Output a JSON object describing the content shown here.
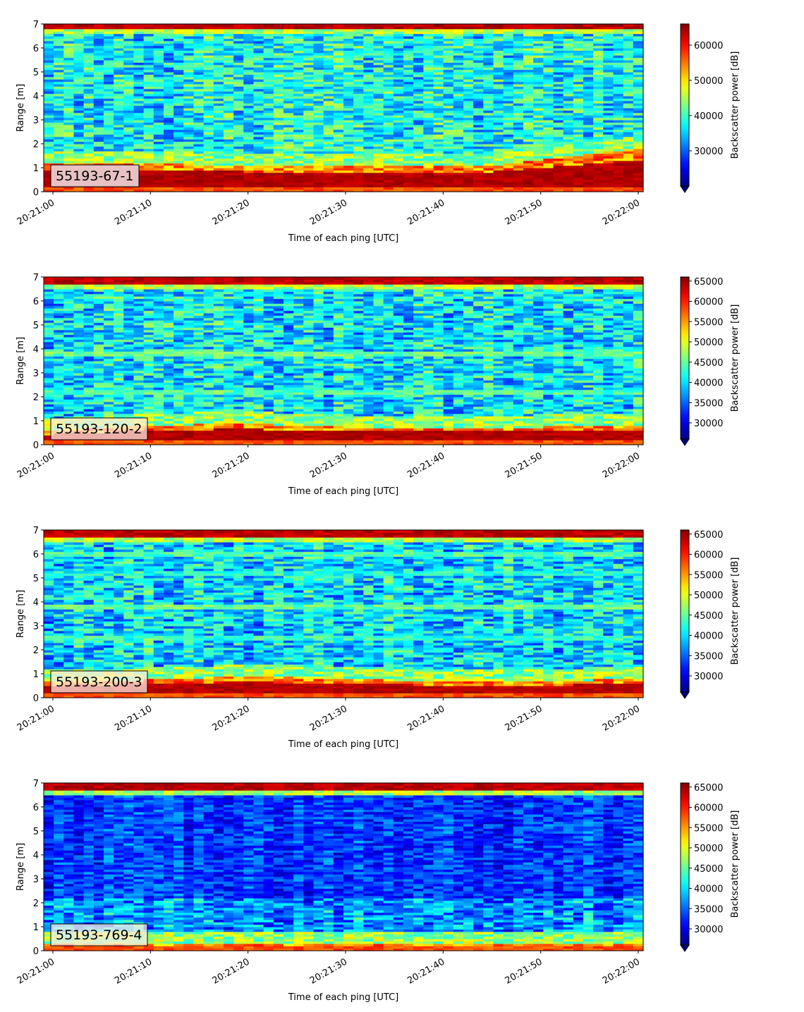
{
  "chart_data": [
    {
      "type": "heatmap",
      "label": "55193-67-1",
      "ylabel": "Range [m]",
      "xlabel": "Time of each ping [UTC]",
      "ylim": [
        0,
        7
      ],
      "yticks": [
        "0",
        "1",
        "2",
        "3",
        "4",
        "5",
        "6",
        "7"
      ],
      "xticks": [
        "20:21:00",
        "20:21:10",
        "20:21:20",
        "20:21:30",
        "20:21:40",
        "20:21:50",
        "20:22:00"
      ],
      "colorbar": {
        "label": "Backscatter power [dB]",
        "min": 20000,
        "max": 66000,
        "ticks": [
          "30000",
          "40000",
          "50000",
          "60000"
        ],
        "tick_values": [
          30000,
          40000,
          50000,
          60000
        ],
        "colormap": "jet"
      },
      "features": {
        "bottom_band": [
          1.25,
          1.15,
          1.1,
          1.1,
          1.8
        ],
        "surface": 6.8,
        "layers": [],
        "background": 0.22,
        "dark": false
      }
    },
    {
      "type": "heatmap",
      "label": "55193-120-2",
      "ylabel": "Range [m]",
      "xlabel": "Time of each ping [UTC]",
      "ylim": [
        0,
        7
      ],
      "yticks": [
        "0",
        "1",
        "2",
        "3",
        "4",
        "5",
        "6",
        "7"
      ],
      "xticks": [
        "20:21:00",
        "20:21:10",
        "20:21:20",
        "20:21:30",
        "20:21:40",
        "20:21:50",
        "20:22:00"
      ],
      "colorbar": {
        "label": "Backscatter power [dB]",
        "min": 26000,
        "max": 66000,
        "ticks": [
          "30000",
          "35000",
          "40000",
          "45000",
          "50000",
          "55000",
          "60000",
          "65000"
        ],
        "tick_values": [
          30000,
          35000,
          40000,
          45000,
          50000,
          55000,
          60000,
          65000
        ],
        "colormap": "jet"
      },
      "features": {
        "bottom_band": [
          0.6,
          0.8,
          0.9,
          0.75,
          0.75,
          0.75,
          0.8
        ],
        "surface": 6.7,
        "layers": [
          3.8,
          2.2
        ],
        "background": 0.2,
        "dark": false
      }
    },
    {
      "type": "heatmap",
      "label": "55193-200-3",
      "ylabel": "Range [m]",
      "xlabel": "Time of each ping [UTC]",
      "ylim": [
        0,
        7
      ],
      "yticks": [
        "0",
        "1",
        "2",
        "3",
        "4",
        "5",
        "6",
        "7"
      ],
      "xticks": [
        "20:21:00",
        "20:21:10",
        "20:21:20",
        "20:21:30",
        "20:21:40",
        "20:21:50",
        "20:22:00"
      ],
      "colorbar": {
        "label": "Backscatter power [dB]",
        "min": 26000,
        "max": 66000,
        "ticks": [
          "30000",
          "35000",
          "40000",
          "45000",
          "50000",
          "55000",
          "60000",
          "65000"
        ],
        "tick_values": [
          30000,
          35000,
          40000,
          45000,
          50000,
          55000,
          60000,
          65000
        ],
        "colormap": "jet"
      },
      "features": {
        "bottom_band": [
          0.7,
          0.75,
          0.9,
          0.8,
          0.7,
          0.7,
          0.8
        ],
        "surface": 6.7,
        "layers": [
          3.8,
          6.0,
          2.5,
          5.2
        ],
        "background": 0.18,
        "dark": false
      }
    },
    {
      "type": "heatmap",
      "label": "55193-769-4",
      "ylabel": "Range [m]",
      "xlabel": "Time of each ping [UTC]",
      "ylim": [
        0,
        7
      ],
      "yticks": [
        "0",
        "1",
        "2",
        "3",
        "4",
        "5",
        "6",
        "7"
      ],
      "xticks": [
        "20:21:00",
        "20:21:10",
        "20:21:20",
        "20:21:30",
        "20:21:40",
        "20:21:50",
        "20:22:00"
      ],
      "colorbar": {
        "label": "Backscatter power [dB]",
        "min": 26000,
        "max": 66000,
        "ticks": [
          "30000",
          "35000",
          "40000",
          "45000",
          "50000",
          "55000",
          "60000",
          "65000"
        ],
        "tick_values": [
          30000,
          35000,
          40000,
          45000,
          50000,
          55000,
          60000,
          65000
        ],
        "colormap": "jet"
      },
      "features": {
        "bottom_band": [
          0.3,
          0.3,
          0.3,
          0.3,
          0.3
        ],
        "surface": 6.7,
        "layers": [],
        "background": 0.08,
        "dark": true
      }
    }
  ]
}
